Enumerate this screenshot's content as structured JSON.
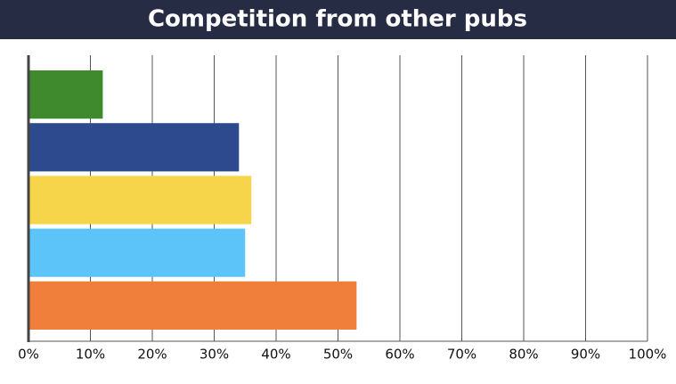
{
  "chart_data": {
    "type": "bar",
    "orientation": "horizontal",
    "title": "Competition from other pubs",
    "categories": [
      null,
      null,
      null,
      null,
      null
    ],
    "values": [
      12,
      34,
      36,
      35,
      53
    ],
    "colors": [
      "#3e8a2c",
      "#2e4a8e",
      "#f7d54a",
      "#5cc4f9",
      "#ef7f3a"
    ],
    "xlim": [
      0,
      100
    ],
    "xticks": [
      {
        "value": 0,
        "label": "0%"
      },
      {
        "value": 10,
        "label": "10%"
      },
      {
        "value": 20,
        "label": "20%"
      },
      {
        "value": 30,
        "label": "30%"
      },
      {
        "value": 40,
        "label": "40%"
      },
      {
        "value": 50,
        "label": "50%"
      },
      {
        "value": 60,
        "label": "60%"
      },
      {
        "value": 70,
        "label": "70%"
      },
      {
        "value": 80,
        "label": "80%"
      },
      {
        "value": 90,
        "label": "90%"
      },
      {
        "value": 100,
        "label": "100%"
      }
    ],
    "grid": true
  }
}
